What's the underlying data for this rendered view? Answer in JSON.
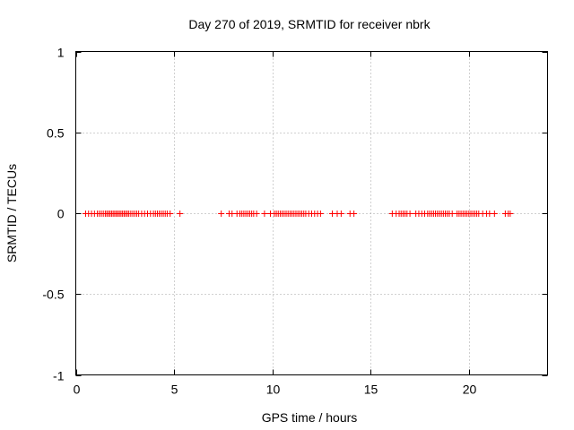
{
  "chart_data": {
    "type": "scatter",
    "title": "Day 270 of 2019, SRMTID for receiver nbrk",
    "xlabel": "GPS time / hours",
    "ylabel": "SRMTID / TECUs",
    "xlim": [
      0,
      24
    ],
    "ylim": [
      -1,
      1
    ],
    "xticks": [
      0,
      5,
      10,
      15,
      20
    ],
    "xtick_labels": [
      "0",
      "5",
      "10",
      "15",
      "20"
    ],
    "yticks": [
      -1,
      -0.5,
      0,
      0.5,
      1
    ],
    "ytick_labels": [
      "-1",
      "-0.5",
      "0",
      "0.5",
      "1"
    ],
    "grid": true,
    "marker": "+",
    "marker_color": "#ff0000",
    "series": [
      {
        "name": "SRMTID",
        "x": [
          0.5,
          0.65,
          0.8,
          0.95,
          1.1,
          1.2,
          1.3,
          1.4,
          1.5,
          1.58,
          1.66,
          1.74,
          1.82,
          1.9,
          1.98,
          2.06,
          2.14,
          2.22,
          2.3,
          2.38,
          2.46,
          2.54,
          2.62,
          2.7,
          2.8,
          2.9,
          3.0,
          3.1,
          3.2,
          3.35,
          3.5,
          3.65,
          3.8,
          3.95,
          4.05,
          4.15,
          4.25,
          4.35,
          4.45,
          4.55,
          4.65,
          4.8,
          5.3,
          7.4,
          7.8,
          7.95,
          8.2,
          8.35,
          8.45,
          8.55,
          8.65,
          8.75,
          8.85,
          8.95,
          9.05,
          9.2,
          9.6,
          9.9,
          10.1,
          10.2,
          10.3,
          10.4,
          10.5,
          10.6,
          10.7,
          10.8,
          10.9,
          11.0,
          11.1,
          11.2,
          11.3,
          11.4,
          11.5,
          11.6,
          11.7,
          11.85,
          12.0,
          12.15,
          12.3,
          12.45,
          13.05,
          13.3,
          13.5,
          13.95,
          14.15,
          16.1,
          16.3,
          16.45,
          16.55,
          16.65,
          16.75,
          16.85,
          17.0,
          17.3,
          17.45,
          17.6,
          17.75,
          17.9,
          18.0,
          18.1,
          18.2,
          18.3,
          18.4,
          18.5,
          18.6,
          18.7,
          18.8,
          18.9,
          19.0,
          19.15,
          19.4,
          19.5,
          19.6,
          19.7,
          19.8,
          19.9,
          20.0,
          20.1,
          20.2,
          20.3,
          20.4,
          20.5,
          20.7,
          20.9,
          21.05,
          21.3,
          21.85,
          22.0,
          22.1
        ],
        "y": [
          0,
          0,
          0,
          0,
          0,
          0,
          0,
          0,
          0,
          0,
          0,
          0,
          0,
          0,
          0,
          0,
          0,
          0,
          0,
          0,
          0,
          0,
          0,
          0,
          0,
          0,
          0,
          0,
          0,
          0,
          0,
          0,
          0,
          0,
          0,
          0,
          0,
          0,
          0,
          0,
          0,
          0,
          0,
          0,
          0,
          0,
          0,
          0,
          0,
          0,
          0,
          0,
          0,
          0,
          0,
          0,
          0,
          0,
          0,
          0,
          0,
          0,
          0,
          0,
          0,
          0,
          0,
          0,
          0,
          0,
          0,
          0,
          0,
          0,
          0,
          0,
          0,
          0,
          0,
          0,
          0,
          0,
          0,
          0,
          0,
          0,
          0,
          0,
          0,
          0,
          0,
          0,
          0,
          0,
          0,
          0,
          0,
          0,
          0,
          0,
          0,
          0,
          0,
          0,
          0,
          0,
          0,
          0,
          0,
          0,
          0,
          0,
          0,
          0,
          0,
          0,
          0,
          0,
          0,
          0,
          0,
          0,
          0,
          0,
          0,
          0,
          0,
          0,
          0
        ]
      }
    ]
  }
}
